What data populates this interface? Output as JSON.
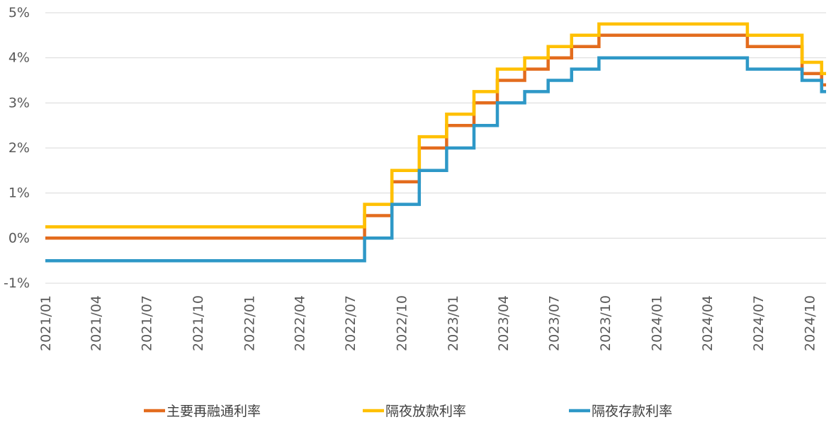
{
  "chart_data": {
    "type": "line",
    "title": "",
    "xlabel": "",
    "ylabel": "",
    "x_range": [
      "2021-01-01",
      "2024-10-31"
    ],
    "ylim": [
      -1,
      5
    ],
    "y_ticks": [
      -1,
      0,
      1,
      2,
      3,
      4,
      5
    ],
    "y_tick_labels": [
      "-1%",
      "0%",
      "1%",
      "2%",
      "3%",
      "4%",
      "5%"
    ],
    "x_ticks": [
      "2021-01-01",
      "2021-04-01",
      "2021-07-01",
      "2021-10-01",
      "2022-01-01",
      "2022-04-01",
      "2022-07-01",
      "2022-10-01",
      "2023-01-01",
      "2023-04-01",
      "2023-07-01",
      "2023-10-01",
      "2024-01-01",
      "2024-04-01",
      "2024-07-01",
      "2024-10-01"
    ],
    "x_tick_labels": [
      "2021/01",
      "2021/04",
      "2021/07",
      "2021/10",
      "2022/01",
      "2022/04",
      "2022/07",
      "2022/10",
      "2023/01",
      "2023/04",
      "2023/07",
      "2023/10",
      "2024/01",
      "2024/04",
      "2024/07",
      "2024/10"
    ],
    "grid": true,
    "legend_position": "bottom",
    "line_style": "step",
    "series": [
      {
        "name": "主要再融通利率",
        "color": "#E36C1E",
        "steps": [
          {
            "date": "2021-01-01",
            "value": 0.0
          },
          {
            "date": "2022-07-27",
            "value": 0.5
          },
          {
            "date": "2022-09-14",
            "value": 1.25
          },
          {
            "date": "2022-11-02",
            "value": 2.0
          },
          {
            "date": "2022-12-21",
            "value": 2.5
          },
          {
            "date": "2023-02-08",
            "value": 3.0
          },
          {
            "date": "2023-03-22",
            "value": 3.5
          },
          {
            "date": "2023-05-10",
            "value": 3.75
          },
          {
            "date": "2023-06-21",
            "value": 4.0
          },
          {
            "date": "2023-08-02",
            "value": 4.25
          },
          {
            "date": "2023-09-20",
            "value": 4.5
          },
          {
            "date": "2024-06-12",
            "value": 4.25
          },
          {
            "date": "2024-09-18",
            "value": 3.65
          },
          {
            "date": "2024-10-23",
            "value": 3.4
          }
        ]
      },
      {
        "name": "隔夜放款利率",
        "color": "#FFC000",
        "steps": [
          {
            "date": "2021-01-01",
            "value": 0.25
          },
          {
            "date": "2022-07-27",
            "value": 0.75
          },
          {
            "date": "2022-09-14",
            "value": 1.5
          },
          {
            "date": "2022-11-02",
            "value": 2.25
          },
          {
            "date": "2022-12-21",
            "value": 2.75
          },
          {
            "date": "2023-02-08",
            "value": 3.25
          },
          {
            "date": "2023-03-22",
            "value": 3.75
          },
          {
            "date": "2023-05-10",
            "value": 4.0
          },
          {
            "date": "2023-06-21",
            "value": 4.25
          },
          {
            "date": "2023-08-02",
            "value": 4.5
          },
          {
            "date": "2023-09-20",
            "value": 4.75
          },
          {
            "date": "2024-06-12",
            "value": 4.5
          },
          {
            "date": "2024-09-18",
            "value": 3.9
          },
          {
            "date": "2024-10-23",
            "value": 3.65
          }
        ]
      },
      {
        "name": "隔夜存款利率",
        "color": "#2E98C7",
        "steps": [
          {
            "date": "2021-01-01",
            "value": -0.5
          },
          {
            "date": "2022-07-27",
            "value": 0.0
          },
          {
            "date": "2022-09-14",
            "value": 0.75
          },
          {
            "date": "2022-11-02",
            "value": 1.5
          },
          {
            "date": "2022-12-21",
            "value": 2.0
          },
          {
            "date": "2023-02-08",
            "value": 2.5
          },
          {
            "date": "2023-03-22",
            "value": 3.0
          },
          {
            "date": "2023-05-10",
            "value": 3.25
          },
          {
            "date": "2023-06-21",
            "value": 3.5
          },
          {
            "date": "2023-08-02",
            "value": 3.75
          },
          {
            "date": "2023-09-20",
            "value": 4.0
          },
          {
            "date": "2024-06-12",
            "value": 3.75
          },
          {
            "date": "2024-09-18",
            "value": 3.5
          },
          {
            "date": "2024-10-23",
            "value": 3.25
          }
        ]
      }
    ]
  }
}
